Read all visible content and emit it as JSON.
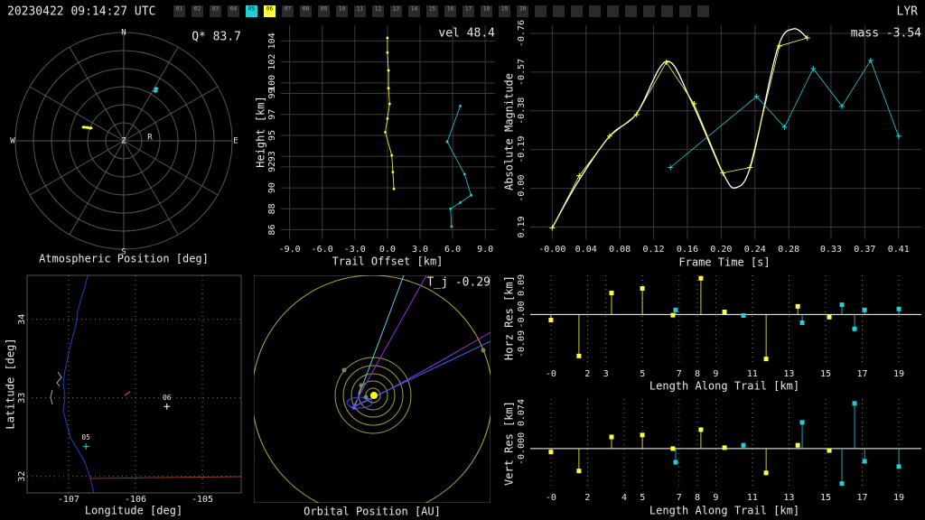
{
  "header": {
    "timestamp": "20230422 09:14:27 UTC",
    "station": "LYR",
    "tabs": [
      {
        "label": "01"
      },
      {
        "label": "02"
      },
      {
        "label": "03"
      },
      {
        "label": "04"
      },
      {
        "label": "05",
        "color": "#20d0d8"
      },
      {
        "label": "06",
        "color": "#ffff40"
      },
      {
        "label": "07"
      },
      {
        "label": "08"
      },
      {
        "label": "09"
      },
      {
        "label": "10"
      },
      {
        "label": "11"
      },
      {
        "label": "12"
      },
      {
        "label": "13"
      },
      {
        "label": "14"
      },
      {
        "label": "15"
      },
      {
        "label": "16"
      },
      {
        "label": "17"
      },
      {
        "label": "18"
      },
      {
        "label": "19"
      },
      {
        "label": "20"
      }
    ]
  },
  "chart_data": [
    {
      "type": "polar",
      "title": "Atmospheric Position [deg]",
      "annotation": "Q* 83.7",
      "compass": [
        "N",
        "E",
        "S",
        "W",
        "Z",
        "R"
      ],
      "grid": true,
      "series": [
        {
          "color": "#ffff40",
          "azimuth": [
            289,
            290,
            291
          ],
          "values": [
            34.9,
            32.3,
            29.7
          ]
        },
        {
          "color": "#20d0d8",
          "azimuth": [
            32.5,
            31.8
          ],
          "values": [
            48.9,
            51.2
          ]
        }
      ]
    },
    {
      "type": "line",
      "xlabel": "Trail Offset [km]",
      "ylabel": "Height [km]",
      "annotation": "vel 48.4",
      "grid": true,
      "xlim": [
        -9.8,
        9.9
      ],
      "ylim": [
        85.1,
        105.5
      ],
      "xticks": [
        {
          "value": -9,
          "label": "-9.0"
        },
        {
          "value": -6,
          "label": "-6.0"
        },
        {
          "value": -3,
          "label": "-3.0"
        },
        {
          "value": 0,
          "label": "0.0"
        },
        {
          "value": 3,
          "label": "3.0"
        },
        {
          "value": 6,
          "label": "6.0"
        },
        {
          "value": 9,
          "label": "9.0"
        }
      ],
      "yticks": [
        86,
        88,
        90,
        92,
        93,
        95,
        97,
        99,
        100,
        102,
        104
      ],
      "series": [
        {
          "color": "#ffff40",
          "marker": "dot",
          "x": [
            0,
            0,
            0.1,
            0.1,
            0.2,
            0,
            -0.2,
            0.4,
            0.5,
            0.6
          ],
          "values": [
            104.3,
            102.9,
            101.2,
            99.5,
            98.0,
            96.6,
            95.3,
            93.1,
            91.5,
            89.9
          ]
        },
        {
          "color": "#20d0d8",
          "marker": "dot",
          "x": [
            6.7,
            5.5,
            7.1,
            7.7,
            6.7,
            5.8,
            5.9
          ],
          "values": [
            97.8,
            94.4,
            91.3,
            89.3,
            88.6,
            88.0,
            86.3
          ]
        }
      ]
    },
    {
      "type": "line",
      "xlabel": "Frame Time [s]",
      "ylabel": "Absolute Magnitude",
      "annotation": "mass -3.54",
      "grid": true,
      "xlim": [
        -0.026,
        0.437
      ],
      "ylim": [
        0.25,
        -0.8
      ],
      "xticks": [
        {
          "value": 0,
          "label": "-0.00"
        },
        0.04,
        0.08,
        0.12,
        0.16,
        {
          "value": 0.2,
          "label": "0.20"
        },
        0.24,
        0.28,
        0.33,
        0.37,
        0.41
      ],
      "yticks": [
        0.19,
        {
          "value": 0,
          "label": "-0.00"
        },
        -0.19,
        -0.38,
        -0.57,
        -0.76
      ],
      "series": [
        {
          "color": "#ffffff",
          "marker": "none",
          "smooth": true,
          "x": [
            0,
            0.031,
            0.068,
            0.1,
            0.135,
            0.164,
            0.202,
            0.218,
            0.236,
            0.266,
            0.285,
            0.302
          ],
          "values": [
            0.194,
            -0.035,
            -0.256,
            -0.367,
            -0.623,
            -0.433,
            -0.075,
            -0.004,
            -0.124,
            -0.676,
            -0.782,
            -0.738
          ]
        },
        {
          "color": "#ffff40",
          "marker": "+",
          "x": [
            0,
            0.032,
            0.068,
            0.1,
            0.135,
            0.168,
            0.202,
            0.234,
            0.269,
            0.302
          ],
          "values": [
            0.194,
            -0.062,
            -0.256,
            -0.362,
            -0.619,
            -0.415,
            -0.075,
            -0.102,
            -0.698,
            -0.738
          ]
        },
        {
          "color": "#20d0d8",
          "marker": "+",
          "x": [
            0.14,
            0.242,
            0.275,
            0.309,
            0.343,
            0.377,
            0.41
          ],
          "values": [
            -0.102,
            -0.451,
            -0.3,
            -0.588,
            -0.402,
            -0.628,
            -0.256
          ]
        }
      ]
    },
    {
      "type": "map",
      "xlabel": "Longitude [deg]",
      "ylabel": "Latitude [deg]",
      "grid": true,
      "xlim": [
        -107.62,
        -104.42
      ],
      "ylim": [
        31.79,
        34.56
      ],
      "xticks": [
        -107,
        -106,
        -105
      ],
      "yticks": [
        32,
        33,
        34
      ],
      "trail": {
        "color": "#e05020",
        "x": [
          -106.16,
          -106.08
        ],
        "values": [
          33.03,
          33.08
        ]
      },
      "stations": [
        {
          "label": "06",
          "color": "#ffffff",
          "lon": -105.53,
          "lat": 32.89
        },
        {
          "label": "05",
          "color": "#20d0d8",
          "lon": -106.74,
          "lat": 32.38
        }
      ]
    },
    {
      "type": "orbit",
      "title": "Orbital Position [AU]",
      "annotation": "T_j -0.29"
    },
    {
      "type": "stem",
      "xlabel": "Length Along Trail [km]",
      "ylabel": "Horz Res [km]",
      "grid": true,
      "xlim": [
        -1.13,
        20.23
      ],
      "ylim": [
        -0.151,
        0.12
      ],
      "xticks": [
        {
          "value": 0,
          "label": "-0"
        },
        2,
        3,
        5,
        7,
        8,
        9,
        11,
        13,
        15,
        17,
        19
      ],
      "yticks": [
        -0.09,
        {
          "value": 0,
          "label": "-0.00"
        },
        0.09
      ],
      "series": [
        {
          "color": "#ffff40",
          "x": [
            0,
            1.53,
            3.31,
            4.99,
            6.66,
            8.19,
            9.48,
            11.75,
            13.48,
            15.2
          ],
          "values": [
            -0.017,
            -0.127,
            0.066,
            0.08,
            -0.002,
            0.111,
            0.008,
            -0.136,
            0.025,
            -0.008
          ]
        },
        {
          "color": "#20d0d8",
          "x": [
            6.81,
            10.51,
            13.72,
            15.89,
            16.58,
            17.13,
            19.0
          ],
          "values": [
            0.014,
            -0.003,
            -0.025,
            0.03,
            -0.044,
            0.014,
            0.017
          ]
        }
      ]
    },
    {
      "type": "stem",
      "xlabel": "Length Along Trail [km]",
      "ylabel": "Vert Res [km]",
      "grid": true,
      "xlim": [
        -1.13,
        20.23
      ],
      "ylim": [
        -0.08,
        0.102
      ],
      "xticks": [
        {
          "value": 0,
          "label": "-0"
        },
        2,
        4,
        5,
        7,
        8,
        9,
        11,
        13,
        15,
        17,
        19
      ],
      "yticks": [
        {
          "value": 0,
          "label": "-0.000"
        },
        0.074
      ],
      "series": [
        {
          "color": "#ffff40",
          "x": [
            0,
            1.53,
            3.31,
            4.99,
            6.66,
            8.19,
            9.48,
            11.75,
            13.48,
            15.2
          ],
          "values": [
            -0.007,
            -0.046,
            0.024,
            0.028,
            0,
            0.039,
            0.002,
            -0.05,
            0.007,
            -0.004
          ]
        },
        {
          "color": "#20d0d8",
          "x": [
            6.81,
            10.51,
            13.72,
            15.89,
            16.58,
            17.13,
            19.0
          ],
          "values": [
            -0.028,
            0.007,
            0.054,
            -0.072,
            0.093,
            -0.026,
            -0.037
          ]
        }
      ]
    }
  ]
}
